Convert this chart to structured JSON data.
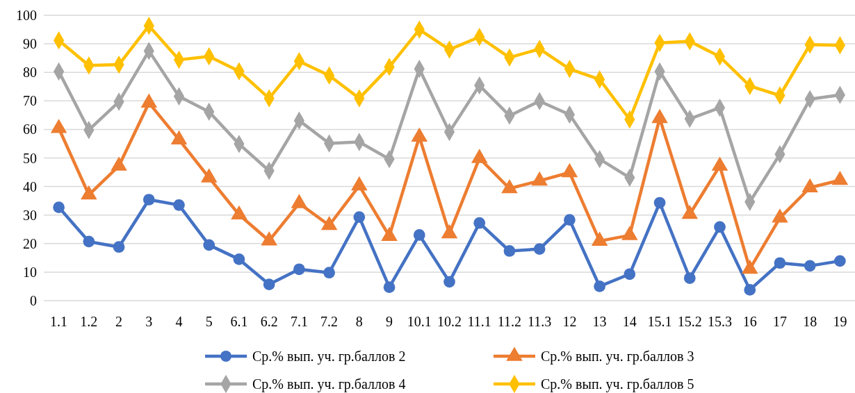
{
  "chart_data": {
    "type": "line",
    "categories": [
      "1.1",
      "1.2",
      "2",
      "3",
      "4",
      "5",
      "6.1",
      "6.2",
      "7.1",
      "7.2",
      "8",
      "9",
      "10.1",
      "10.2",
      "11.1",
      "11.2",
      "11.3",
      "12",
      "13",
      "14",
      "15.1",
      "15.2",
      "15.3",
      "16",
      "17",
      "18",
      "19"
    ],
    "series": [
      {
        "name": "Ср.% вып. уч. гр.баллов 2",
        "color": "#4472c4",
        "marker": "circle",
        "values": [
          32.7,
          20.7,
          18.8,
          35.4,
          33.5,
          19.5,
          14.5,
          5.7,
          11.0,
          9.8,
          29.3,
          4.7,
          23.0,
          6.6,
          27.2,
          17.4,
          18.1,
          28.3,
          5.0,
          9.3,
          34.3,
          7.9,
          25.8,
          3.8,
          13.2,
          12.2,
          13.9
        ]
      },
      {
        "name": "Ср.% вып. уч. гр.баллов 3",
        "color": "#ed7d31",
        "marker": "triangle",
        "values": [
          60.4,
          37.1,
          47.2,
          69.3,
          56.4,
          43.1,
          30.1,
          21.0,
          34.1,
          26.4,
          40.3,
          22.6,
          57.4,
          23.5,
          49.9,
          39.3,
          42.0,
          44.9,
          20.9,
          22.9,
          63.9,
          30.3,
          47.2,
          11.1,
          29.0,
          39.6,
          42.2
        ]
      },
      {
        "name": "Ср.% вып. уч. гр.баллов 4",
        "color": "#a5a5a5",
        "marker": "diamond",
        "values": [
          80.3,
          59.8,
          69.7,
          87.5,
          71.6,
          66.2,
          54.9,
          45.5,
          63.1,
          55.1,
          55.6,
          49.6,
          81.2,
          59.1,
          75.4,
          64.8,
          69.9,
          65.2,
          49.6,
          43.1,
          80.3,
          63.7,
          67.6,
          34.6,
          51.3,
          70.6,
          72.1
        ]
      },
      {
        "name": "Ср.% вып. уч. гр.баллов 5",
        "color": "#ffc000",
        "marker": "diamond",
        "values": [
          91.2,
          82.4,
          82.7,
          96.3,
          84.4,
          85.6,
          80.4,
          70.9,
          83.9,
          78.9,
          70.9,
          81.9,
          95.0,
          88.0,
          92.4,
          85.2,
          88.2,
          81.2,
          77.5,
          63.5,
          90.3,
          90.9,
          85.5,
          75.2,
          71.9,
          89.7,
          89.5
        ]
      }
    ],
    "ylim": [
      0,
      100
    ],
    "yticks": [
      0,
      10,
      20,
      30,
      40,
      50,
      60,
      70,
      80,
      90,
      100
    ],
    "grid": "y",
    "legend": "bottom",
    "line_style": "solid"
  }
}
